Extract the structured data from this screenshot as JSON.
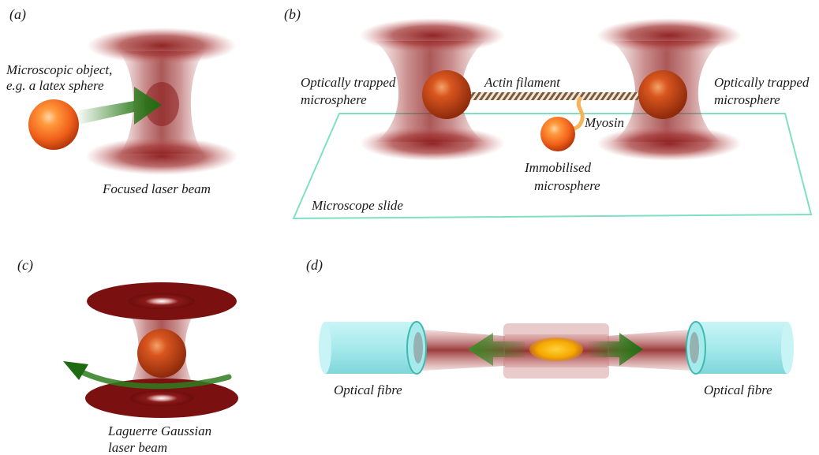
{
  "panels": {
    "a": {
      "tag": "(a)",
      "object_label_line1": "Microscopic object,",
      "object_label_line2": "e.g. a latex sphere",
      "beam_label": "Focused laser beam"
    },
    "b": {
      "tag": "(b)",
      "left_sphere_line1": "Optically trapped",
      "left_sphere_line2": "microsphere",
      "right_sphere_line1": "Optically trapped",
      "right_sphere_line2": "microsphere",
      "filament_label": "Actin filament",
      "myosin_label": "Myosin",
      "immobilised_line1": "Immobilised",
      "immobilised_line2": "microsphere",
      "slide_label": "Microscope slide"
    },
    "c": {
      "tag": "(c)",
      "beam_label_line1": "Laguerre Gaussian",
      "beam_label_line2": "laser beam"
    },
    "d": {
      "tag": "(d)",
      "left_fibre_label": "Optical fibre",
      "right_fibre_label": "Optical fibre"
    }
  },
  "colors": {
    "beam": "#8b1a1a",
    "sphere": "#f26a1b",
    "arrow": "#2e7d1e",
    "slide": "#7fe0c4",
    "fibre": "#9fe8ea",
    "filament": "#8a6a4a",
    "myosin": "#f4b55a"
  }
}
